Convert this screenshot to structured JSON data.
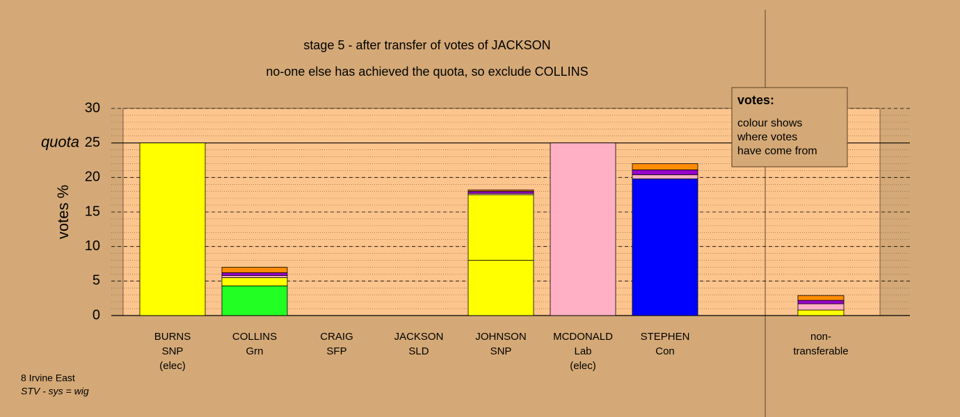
{
  "chart_data": {
    "type": "stacked_bar",
    "title": "stage 5 - after transfer of votes of JACKSON",
    "subtitle": "no-one else has achieved the quota, so exclude COLLINS",
    "y_label": "votes %",
    "quota": 25,
    "quota_label": "quota",
    "ylim": [
      0,
      30
    ],
    "yticks": [
      0,
      5,
      10,
      15,
      20,
      25,
      30
    ],
    "grid": true,
    "minor_grid_step": 1,
    "categories": [
      [
        "BURNS",
        "SNP",
        "(elec)"
      ],
      [
        "COLLINS",
        "Grn"
      ],
      [
        "CRAIG",
        "SFP"
      ],
      [
        "JACKSON",
        "SLD"
      ],
      [
        "JOHNSON",
        "SNP"
      ],
      [
        "MCDONALD",
        "Lab",
        "(elec)"
      ],
      [
        "STEPHEN",
        "Con"
      ],
      [
        "non-",
        "transferable"
      ]
    ],
    "series": [
      {
        "colors": [
          "#ffff00",
          "#22ff22",
          "#9900cc",
          "#ff8c00",
          "#ffff00",
          "#ffb0c4",
          "#0000ff",
          "#ffffff"
        ],
        "values": [
          25,
          4.3,
          0,
          0,
          8.0,
          25,
          19.8,
          0
        ]
      },
      {
        "color": "#ffff00",
        "values": [
          0,
          1.2,
          0,
          0,
          9.5,
          0,
          0,
          0.8
        ]
      },
      {
        "color": "#ffb0c4",
        "values": [
          0,
          0.3,
          0,
          0,
          0.2,
          0,
          0.6,
          0.9
        ]
      },
      {
        "color": "#9900cc",
        "values": [
          0,
          0.4,
          0,
          0,
          0.3,
          0,
          0.7,
          0.5
        ]
      },
      {
        "color": "#ff8c00",
        "values": [
          0,
          0.8,
          0,
          0,
          0.2,
          0,
          0.9,
          0.7
        ]
      }
    ],
    "legend": {
      "title": "votes:",
      "lines": [
        "colour shows",
        "where votes",
        "have come from"
      ]
    },
    "footer": {
      "line1": "8 Irvine East",
      "line2": "STV - sys = wig"
    }
  }
}
